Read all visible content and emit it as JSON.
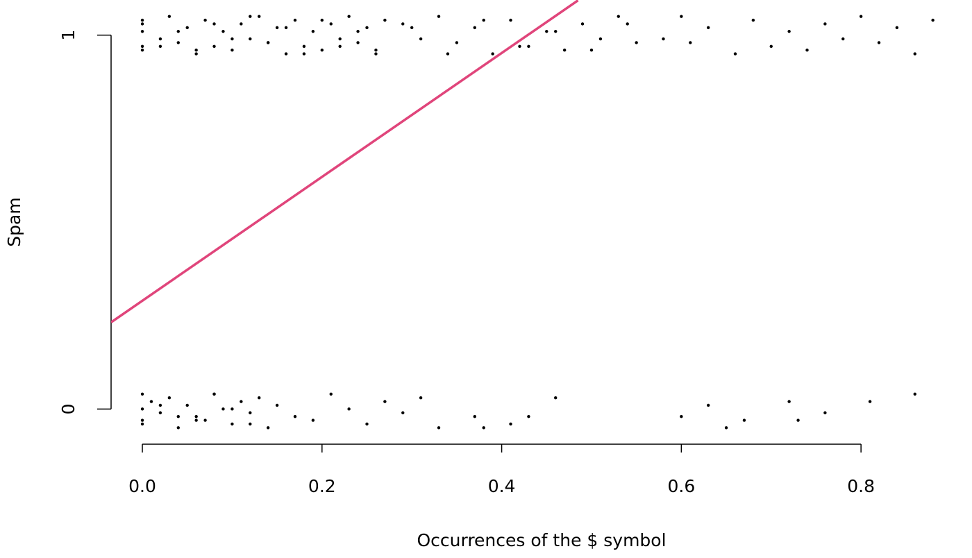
{
  "chart_data": {
    "type": "scatter",
    "x_label": "Occurrences of the $ symbol",
    "y_label": "Spam",
    "xlim": [
      -0.0348,
      0.905
    ],
    "ylim": [
      -0.094,
      1.094
    ],
    "xticks": [
      {
        "value": 0,
        "label": "0.0"
      },
      0.2,
      0.4,
      0.6,
      0.8
    ],
    "yticks": [
      0,
      1
    ],
    "series": [
      {
        "color": "#000000",
        "x": [
          0,
          0,
          0,
          0,
          0,
          0.02,
          0.03,
          0.04,
          0.05,
          0.06,
          0.07,
          0.08,
          0.09,
          0.1,
          0.11,
          0.12,
          0.13,
          0.14,
          0.15,
          0.16,
          0.17,
          0.18,
          0.19,
          0.2,
          0.21,
          0.22,
          0.23,
          0.24,
          0.25,
          0.26,
          0.27,
          0.02,
          0.04,
          0.06,
          0.08,
          0.1,
          0.12,
          0.14,
          0.16,
          0.18,
          0.2,
          0.22,
          0.24,
          0.26,
          0.29,
          0.31,
          0.33,
          0.35,
          0.37,
          0.39,
          0.41,
          0.43,
          0.45,
          0.47,
          0.49,
          0.51,
          0.53,
          0.55,
          0.3,
          0.34,
          0.38,
          0.42,
          0.46,
          0.5,
          0.54,
          0.58,
          0.6,
          0.61,
          0.63,
          0.66,
          0.68,
          0.7,
          0.72,
          0.74,
          0.76,
          0.78,
          0.8,
          0.82,
          0.84,
          0.86,
          0.88
        ],
        "values": [
          1.04,
          0.97,
          1.01,
          0.96,
          1.03,
          0.99,
          1.05,
          0.98,
          1.02,
          0.95,
          1.04,
          0.97,
          1.01,
          0.96,
          1.03,
          0.99,
          1.05,
          0.98,
          1.02,
          0.95,
          1.04,
          0.97,
          1.01,
          0.96,
          1.03,
          0.99,
          1.05,
          0.98,
          1.02,
          0.95,
          1.04,
          0.97,
          1.01,
          0.96,
          1.03,
          0.99,
          1.05,
          0.98,
          1.02,
          0.95,
          1.04,
          0.97,
          1.01,
          0.96,
          1.03,
          0.99,
          1.05,
          0.98,
          1.02,
          0.95,
          1.04,
          0.97,
          1.01,
          0.96,
          1.03,
          0.99,
          1.05,
          0.98,
          1.02,
          0.95,
          1.04,
          0.97,
          1.01,
          0.96,
          1.03,
          0.99,
          1.05,
          0.98,
          1.02,
          0.95,
          1.04,
          0.97,
          1.01,
          0.96,
          1.03,
          0.99,
          1.05,
          0.98,
          1.02,
          0.95,
          1.04
        ]
      },
      {
        "color": "#000000",
        "x": [
          0,
          0,
          0,
          0,
          0.01,
          0.02,
          0.03,
          0.04,
          0.05,
          0.06,
          0.07,
          0.08,
          0.09,
          0.1,
          0.11,
          0.12,
          0.13,
          0.14,
          0.15,
          0.17,
          0.19,
          0.21,
          0.23,
          0.25,
          0.27,
          0.29,
          0.31,
          0.33,
          0.02,
          0.04,
          0.06,
          0.08,
          0.1,
          0.12,
          0.37,
          0.38,
          0.41,
          0.43,
          0.46,
          0.6,
          0.63,
          0.65,
          0.67,
          0.72,
          0.73,
          0.76,
          0.81,
          0.86
        ],
        "values": [
          -0.03,
          0.04,
          0.0,
          -0.04,
          0.02,
          -0.01,
          0.03,
          -0.05,
          0.01,
          -0.02,
          -0.03,
          0.04,
          0.0,
          -0.04,
          0.02,
          -0.01,
          0.03,
          -0.05,
          0.01,
          -0.02,
          -0.03,
          0.04,
          0.0,
          -0.04,
          0.02,
          -0.01,
          0.03,
          -0.05,
          0.01,
          -0.02,
          -0.03,
          0.04,
          0.0,
          -0.04,
          -0.02,
          -0.05,
          -0.04,
          -0.02,
          0.03,
          -0.02,
          0.01,
          -0.05,
          -0.03,
          0.02,
          -0.03,
          -0.01,
          0.02,
          0.04
        ]
      }
    ],
    "fit": {
      "color": "#e0457b",
      "x": [
        -0.0348,
        0.485
      ],
      "values": [
        0.232,
        1.093
      ]
    }
  }
}
